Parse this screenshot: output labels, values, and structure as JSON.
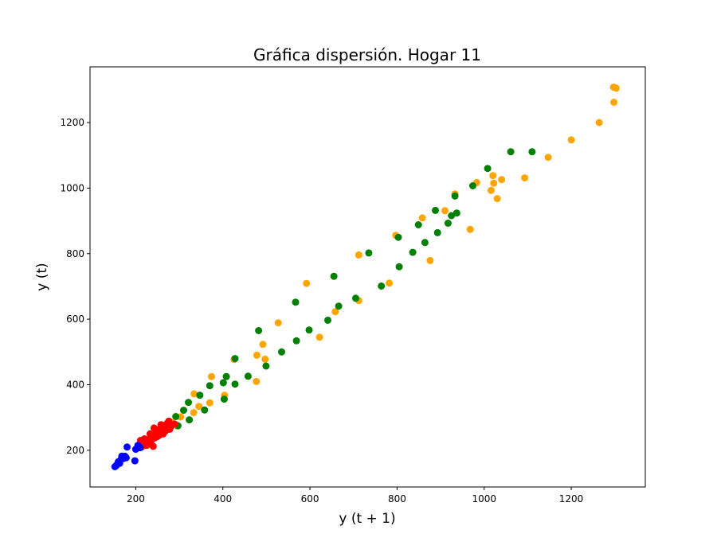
{
  "chart_data": {
    "type": "scatter",
    "title": "Gráfica dispersión. Hogar 11",
    "xlabel": "y (t + 1)",
    "ylabel": "y (t)",
    "xlim": [
      95,
      1370
    ],
    "ylim": [
      88,
      1370
    ],
    "xticks": [
      200,
      400,
      600,
      800,
      1000,
      1200
    ],
    "yticks": [
      200,
      400,
      600,
      800,
      1000,
      1200
    ],
    "grid": false,
    "series": [
      {
        "color": "#ffa500",
        "points": [
          [
            1297,
            1308
          ],
          [
            1303,
            1305
          ],
          [
            1298,
            1262
          ],
          [
            1264,
            1200
          ],
          [
            1200,
            1147
          ],
          [
            1147,
            1094
          ],
          [
            1093,
            1031
          ],
          [
            1040,
            1026
          ],
          [
            1020,
            1038
          ],
          [
            1022,
            1015
          ],
          [
            1016,
            993
          ],
          [
            1030,
            968
          ],
          [
            983,
            1017
          ],
          [
            968,
            874
          ],
          [
            933,
            982
          ],
          [
            910,
            931
          ],
          [
            858,
            909
          ],
          [
            876,
            779
          ],
          [
            797,
            856
          ],
          [
            782,
            710
          ],
          [
            712,
            796
          ],
          [
            712,
            657
          ],
          [
            658,
            623
          ],
          [
            622,
            545
          ],
          [
            592,
            709
          ],
          [
            527,
            589
          ],
          [
            492,
            523
          ],
          [
            497,
            478
          ],
          [
            478,
            490
          ],
          [
            477,
            410
          ],
          [
            426,
            477
          ],
          [
            404,
            368
          ],
          [
            374,
            425
          ],
          [
            370,
            345
          ],
          [
            345,
            334
          ],
          [
            334,
            372
          ],
          [
            333,
            315
          ],
          [
            303,
            302
          ],
          [
            296,
            274
          ],
          [
            282,
            286
          ]
        ]
      },
      {
        "color": "#008000",
        "points": [
          [
            1110,
            1111
          ],
          [
            1061,
            1111
          ],
          [
            1008,
            1060
          ],
          [
            974,
            1007
          ],
          [
            933,
            976
          ],
          [
            937,
            924
          ],
          [
            925,
            916
          ],
          [
            917,
            893
          ],
          [
            888,
            932
          ],
          [
            893,
            864
          ],
          [
            864,
            834
          ],
          [
            849,
            888
          ],
          [
            836,
            804
          ],
          [
            803,
            850
          ],
          [
            805,
            760
          ],
          [
            735,
            802
          ],
          [
            764,
            701
          ],
          [
            705,
            664
          ],
          [
            666,
            640
          ],
          [
            655,
            731
          ],
          [
            641,
            597
          ],
          [
            598,
            567
          ],
          [
            567,
            652
          ],
          [
            569,
            534
          ],
          [
            535,
            500
          ],
          [
            499,
            457
          ],
          [
            482,
            565
          ],
          [
            458,
            426
          ],
          [
            428,
            480
          ],
          [
            428,
            402
          ],
          [
            408,
            425
          ],
          [
            401,
            406
          ],
          [
            403,
            356
          ],
          [
            370,
            397
          ],
          [
            358,
            323
          ],
          [
            347,
            368
          ],
          [
            323,
            293
          ],
          [
            321,
            346
          ],
          [
            310,
            322
          ],
          [
            292,
            303
          ],
          [
            297,
            275
          ]
        ]
      },
      {
        "color": "#ff0000",
        "points": [
          [
            289,
            280
          ],
          [
            281,
            273
          ],
          [
            278,
            264
          ],
          [
            276,
            289
          ],
          [
            272,
            282
          ],
          [
            268,
            259
          ],
          [
            265,
            272
          ],
          [
            263,
            250
          ],
          [
            260,
            268
          ],
          [
            258,
            278
          ],
          [
            255,
            247
          ],
          [
            252,
            262
          ],
          [
            250,
            242
          ],
          [
            247,
            252
          ],
          [
            244,
            238
          ],
          [
            242,
            268
          ],
          [
            240,
            212
          ],
          [
            238,
            235
          ],
          [
            235,
            228
          ],
          [
            233,
            250
          ],
          [
            230,
            220
          ],
          [
            228,
            232
          ],
          [
            225,
            215
          ],
          [
            222,
            226
          ],
          [
            220,
            235
          ],
          [
            218,
            214
          ],
          [
            215,
            222
          ],
          [
            213,
            210
          ],
          [
            211,
            230
          ],
          [
            210,
            218
          ]
        ]
      },
      {
        "color": "#0000ff",
        "points": [
          [
            210,
            208
          ],
          [
            205,
            215
          ],
          [
            200,
            203
          ],
          [
            198,
            168
          ],
          [
            180,
            210
          ],
          [
            178,
            177
          ],
          [
            175,
            182
          ],
          [
            172,
            175
          ],
          [
            168,
            182
          ],
          [
            165,
            170
          ],
          [
            163,
            160
          ],
          [
            160,
            165
          ],
          [
            158,
            158
          ],
          [
            155,
            153
          ],
          [
            152,
            150
          ]
        ]
      }
    ]
  }
}
